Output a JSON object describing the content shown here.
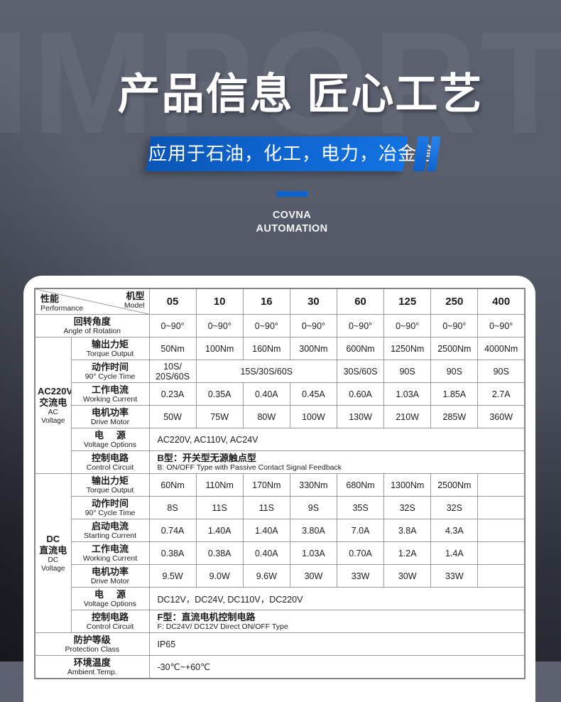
{
  "hero": {
    "watermark": "IMPORT",
    "title": "产品信息 匠心工艺",
    "banner": "应用于石油，化工，电力，冶金等",
    "brand_line1": "COVNA",
    "brand_line2": "AUTOMATION"
  },
  "colors": {
    "accent_blue": "#0e63cd",
    "banner_gradient_start": "#0a55b4",
    "banner_gradient_end": "#1373e3",
    "hero_text": "#ffffff",
    "panel_bg": "#ffffff",
    "table_grid": "#9b9b9b",
    "table_text": "#1c1c1c"
  },
  "table": {
    "corner": {
      "top_zh": "机型",
      "top_en": "Model",
      "bottom_zh": "性能",
      "bottom_en": "Performance"
    },
    "models": [
      "05",
      "10",
      "16",
      "30",
      "60",
      "125",
      "250",
      "400"
    ],
    "sections": [
      {
        "type": "plain",
        "label_zh": "回转角度",
        "label_en": "Angle of Rotation",
        "cells": [
          {
            "t": "0~90°"
          },
          {
            "t": "0~90°"
          },
          {
            "t": "0~90°"
          },
          {
            "t": "0~90°"
          },
          {
            "t": "0~90°"
          },
          {
            "t": "0~90°"
          },
          {
            "t": "0~90°"
          },
          {
            "t": "0~90°"
          }
        ]
      },
      {
        "type": "group",
        "group": {
          "line1": "AC220V",
          "line2": "交流电",
          "line3": "AC Voltage"
        },
        "rows": [
          {
            "label_zh": "输出力矩",
            "label_en": "Torque Output",
            "cells": [
              {
                "t": "50Nm"
              },
              {
                "t": "100Nm"
              },
              {
                "t": "160Nm"
              },
              {
                "t": "300Nm"
              },
              {
                "t": "600Nm"
              },
              {
                "t": "1250Nm"
              },
              {
                "t": "2500Nm"
              },
              {
                "t": "4000Nm"
              }
            ]
          },
          {
            "label_zh": "动作时间",
            "label_en": "90° Cycle Time",
            "cells": [
              {
                "t": "10S/\n20S/60S"
              },
              {
                "t": "15S/30S/60S",
                "span": 3
              },
              {
                "t": "30S/60S"
              },
              {
                "t": "90S"
              },
              {
                "t": "90S"
              },
              {
                "t": "90S"
              }
            ]
          },
          {
            "label_zh": "工作电流",
            "label_en": "Working Current",
            "cells": [
              {
                "t": "0.23A"
              },
              {
                "t": "0.35A"
              },
              {
                "t": "0.40A"
              },
              {
                "t": "0.45A"
              },
              {
                "t": "0.60A"
              },
              {
                "t": "1.03A"
              },
              {
                "t": "1.85A"
              },
              {
                "t": "2.7A"
              }
            ]
          },
          {
            "label_zh": "电机功率",
            "label_en": "Drive  Motor",
            "cells": [
              {
                "t": "50W"
              },
              {
                "t": "75W"
              },
              {
                "t": "80W"
              },
              {
                "t": "100W"
              },
              {
                "t": "130W"
              },
              {
                "t": "210W"
              },
              {
                "t": "285W"
              },
              {
                "t": "360W"
              }
            ]
          },
          {
            "label_zh": "电     源",
            "label_en": "Voltage Options",
            "cells": [
              {
                "t": "AC220V, AC110V, AC24V",
                "span": 8,
                "left": true
              }
            ]
          },
          {
            "label_zh": "控制电路",
            "label_en": "Control  Circuit",
            "cells": [
              {
                "t": "B型：开关型无源触点型",
                "t2": "B: ON/OFF Type with Passive Contact Signal Feedback",
                "span": 8,
                "left": true
              }
            ]
          }
        ]
      },
      {
        "type": "group",
        "group": {
          "line1": "DC",
          "line2": "直流电",
          "line3": "DC Voltage"
        },
        "rows": [
          {
            "label_zh": "输出力矩",
            "label_en": "Torque Output",
            "cells": [
              {
                "t": "60Nm"
              },
              {
                "t": "110Nm"
              },
              {
                "t": "170Nm"
              },
              {
                "t": "330Nm"
              },
              {
                "t": "680Nm"
              },
              {
                "t": "1300Nm"
              },
              {
                "t": "2500Nm"
              },
              {
                "t": ""
              }
            ]
          },
          {
            "label_zh": "动作时间",
            "label_en": "90° Cycle Time",
            "cells": [
              {
                "t": "8S"
              },
              {
                "t": "11S"
              },
              {
                "t": "11S"
              },
              {
                "t": "9S"
              },
              {
                "t": "35S"
              },
              {
                "t": "32S"
              },
              {
                "t": "32S"
              },
              {
                "t": ""
              }
            ]
          },
          {
            "label_zh": "启动电流",
            "label_en": "Starting Current",
            "cells": [
              {
                "t": "0.74A"
              },
              {
                "t": "1.40A"
              },
              {
                "t": "1.40A"
              },
              {
                "t": "3.80A"
              },
              {
                "t": "7.0A"
              },
              {
                "t": "3.8A"
              },
              {
                "t": "4.3A"
              },
              {
                "t": ""
              }
            ]
          },
          {
            "label_zh": "工作电流",
            "label_en": "Working Current",
            "cells": [
              {
                "t": "0.38A"
              },
              {
                "t": "0.38A"
              },
              {
                "t": "0.40A"
              },
              {
                "t": "1.03A"
              },
              {
                "t": "0.70A"
              },
              {
                "t": "1.2A"
              },
              {
                "t": "1.4A"
              },
              {
                "t": ""
              }
            ]
          },
          {
            "label_zh": "电机功率",
            "label_en": "Drive  Motor",
            "cells": [
              {
                "t": "9.5W"
              },
              {
                "t": "9.0W"
              },
              {
                "t": "9.6W"
              },
              {
                "t": "30W"
              },
              {
                "t": "33W"
              },
              {
                "t": "30W"
              },
              {
                "t": "33W"
              },
              {
                "t": ""
              }
            ]
          },
          {
            "label_zh": "电     源",
            "label_en": "Voltage Options",
            "cells": [
              {
                "t": "DC12V，DC24V, DC110V，DC220V",
                "span": 8,
                "left": true
              }
            ]
          },
          {
            "label_zh": "控制电路",
            "label_en": "Control  Circuit",
            "cells": [
              {
                "t": "F型：直流电机控制电路",
                "t2": "F: DC24V/ DC12V Direct ON/OFF Type",
                "span": 8,
                "left": true
              }
            ]
          }
        ]
      },
      {
        "type": "plain",
        "label_zh": "防护等级",
        "label_en": "Protection Class",
        "cells": [
          {
            "t": "IP65",
            "span": 8,
            "left": true
          }
        ]
      },
      {
        "type": "plain",
        "label_zh": "环境温度",
        "label_en": "Ambient  Temp.",
        "cells": [
          {
            "t": "-30℃~+60℃",
            "span": 8,
            "left": true
          }
        ]
      }
    ]
  }
}
